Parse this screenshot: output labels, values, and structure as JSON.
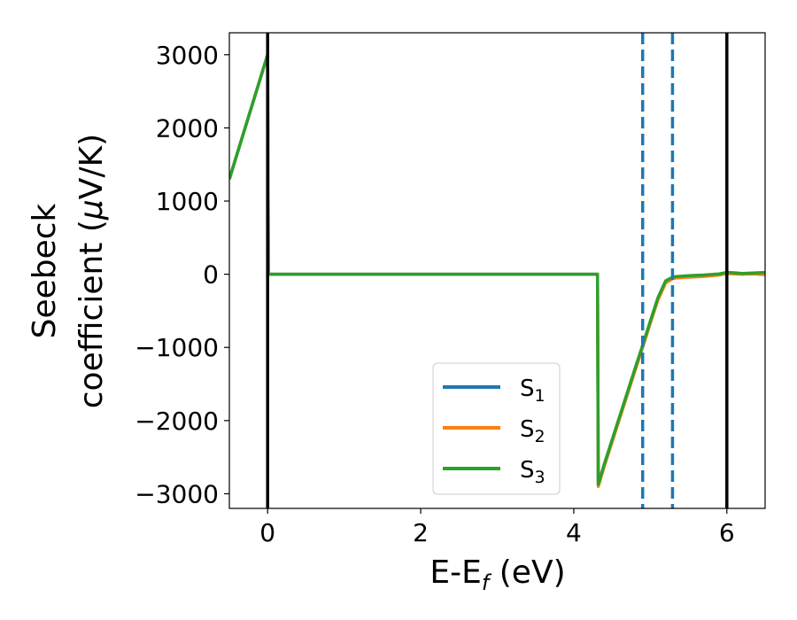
{
  "chart_data": {
    "type": "line",
    "title": "",
    "xlabel": {
      "main": "E-E",
      "sub": "f",
      "tail": " (eV)"
    },
    "ylabel": {
      "line1": "Seebeck",
      "line2_prefix": "coefficient  (",
      "line2_mu": "μ",
      "line2_suffix": "V/K)"
    },
    "xlim": [
      -0.5,
      6.5
    ],
    "ylim": [
      -3200,
      3300
    ],
    "xticks": [
      0,
      2,
      4,
      6
    ],
    "xtick_labels": [
      "0",
      "2",
      "4",
      "6"
    ],
    "yticks": [
      -3000,
      -2000,
      -1000,
      0,
      1000,
      2000,
      3000
    ],
    "ytick_labels": [
      "−3000",
      "−2000",
      "−1000",
      "0",
      "1000",
      "2000",
      "3000"
    ],
    "grid": false,
    "legend_placement": "lower-center",
    "series": [
      {
        "name_main": "S",
        "name_sub": "1",
        "color": "#1f77b4",
        "x": [
          -0.5,
          0.0,
          0.01,
          4.31,
          4.32,
          4.4,
          4.6,
          4.8,
          4.9,
          5.0,
          5.1,
          5.2,
          5.3,
          5.5,
          5.7,
          5.9,
          6.0,
          6.1,
          6.2,
          6.3,
          6.5
        ],
        "y": [
          1300,
          3000,
          0,
          0,
          -2880,
          -2600,
          -1950,
          -1300,
          -980,
          -650,
          -330,
          -100,
          -40,
          -25,
          -15,
          0,
          20,
          15,
          5,
          10,
          -5
        ]
      },
      {
        "name_main": "S",
        "name_sub": "2",
        "color": "#ff7f0e",
        "x": [
          -0.5,
          0.0,
          0.01,
          4.31,
          4.32,
          4.4,
          4.6,
          4.8,
          4.9,
          5.0,
          5.1,
          5.2,
          5.3,
          5.5,
          5.7,
          5.9,
          6.0,
          6.1,
          6.2,
          6.3,
          6.5
        ],
        "y": [
          1300,
          3000,
          0,
          0,
          -2900,
          -2620,
          -1970,
          -1320,
          -1000,
          -670,
          -350,
          -120,
          -55,
          -40,
          -30,
          -10,
          10,
          5,
          0,
          5,
          0
        ]
      },
      {
        "name_main": "S",
        "name_sub": "3",
        "color": "#2ca02c",
        "x": [
          -0.5,
          0.0,
          0.01,
          4.31,
          4.32,
          4.4,
          4.6,
          4.8,
          4.9,
          5.0,
          5.1,
          5.2,
          5.3,
          5.5,
          5.7,
          5.9,
          6.0,
          6.1,
          6.2,
          6.3,
          6.5
        ],
        "y": [
          1300,
          3000,
          0,
          0,
          -2870,
          -2590,
          -1940,
          -1290,
          -970,
          -640,
          -320,
          -90,
          -35,
          -20,
          -10,
          5,
          25,
          20,
          10,
          15,
          25
        ]
      }
    ],
    "vertical_lines": [
      {
        "x": 0.0,
        "color": "#000000",
        "style": "solid"
      },
      {
        "x": 6.0,
        "color": "#000000",
        "style": "solid"
      },
      {
        "x": 4.9,
        "color": "#1f77b4",
        "style": "dashed"
      },
      {
        "x": 5.29,
        "color": "#1f77b4",
        "style": "dashed"
      }
    ]
  }
}
